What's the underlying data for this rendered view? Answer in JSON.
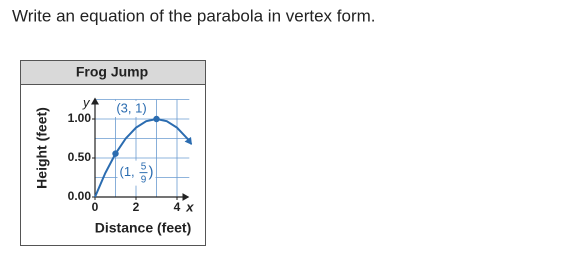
{
  "question": "Write an equation of the parabola in vertex form.",
  "chart_data": {
    "type": "line",
    "title": "Frog Jump",
    "x_label": "Distance (feet)",
    "y_label": "Height (feet)",
    "x_axis_letter": "x",
    "y_axis_letter": "y",
    "xlim": [
      0,
      4.6
    ],
    "ylim": [
      0,
      1.25
    ],
    "xticks": [
      0,
      2,
      4
    ],
    "yticks": [
      {
        "value": 0,
        "label": "0.00"
      },
      {
        "value": 0.5,
        "label": "0.50"
      },
      {
        "value": 1,
        "label": "1.00"
      }
    ],
    "x_grid": [
      1,
      2,
      3,
      4
    ],
    "y_grid": [
      0.25,
      0.5,
      0.75,
      1,
      1.25
    ],
    "grid": true,
    "series": [
      {
        "color": "#2b6cb0",
        "x": [
          0,
          0.5,
          1,
          1.5,
          2,
          2.5,
          3,
          3.5,
          4,
          4.5,
          4.7
        ],
        "values": [
          0,
          0.306,
          0.556,
          0.75,
          0.889,
          0.972,
          1,
          0.972,
          0.889,
          0.75,
          0.679
        ]
      }
    ],
    "points": [
      {
        "x": 1,
        "y": 0.556,
        "label": {
          "open": "(1,",
          "numerator": "5",
          "denominator": "9",
          "close": ")"
        }
      },
      {
        "x": 3,
        "y": 1,
        "label": "(3, 1)"
      }
    ]
  }
}
